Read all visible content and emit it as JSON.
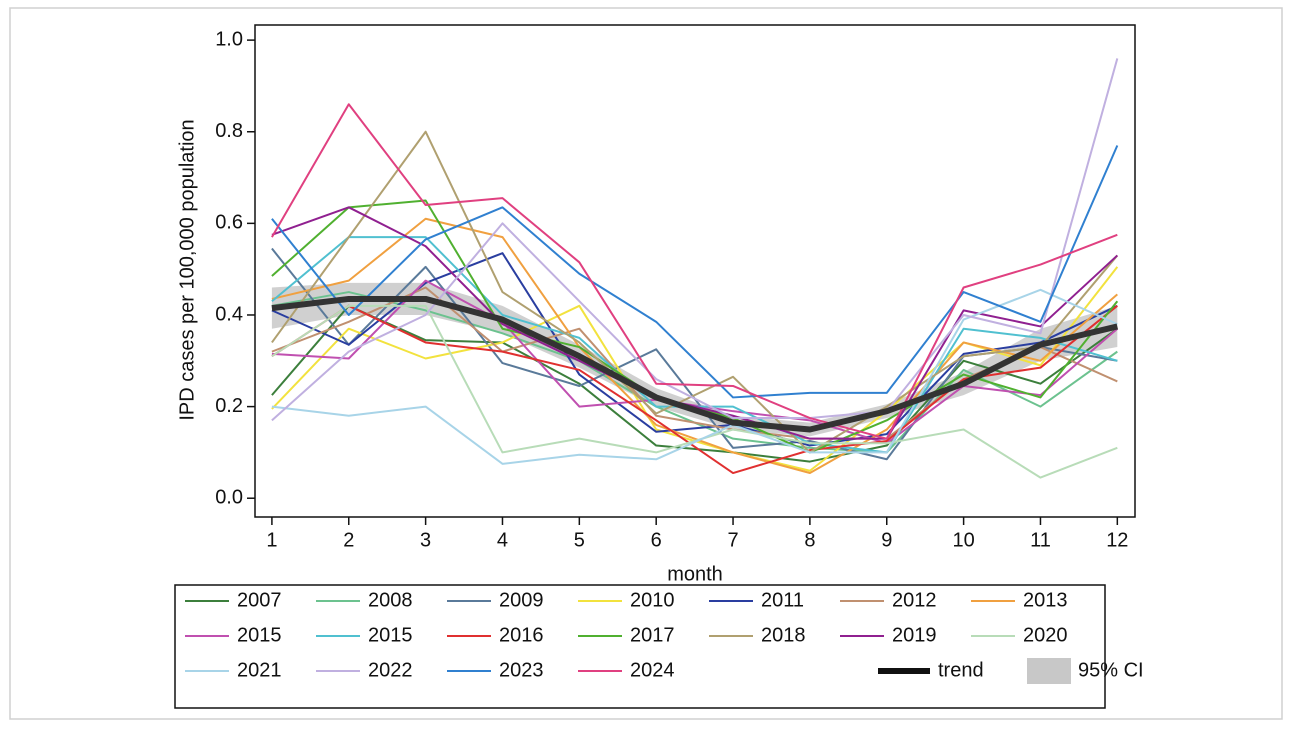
{
  "chart_data": {
    "type": "line",
    "ylabel": "IPD cases per 100,000 population",
    "xlabel": "month",
    "x": [
      1,
      2,
      3,
      4,
      5,
      6,
      7,
      8,
      9,
      10,
      11,
      12
    ],
    "xlim": [
      0.78,
      12.23
    ],
    "xticks": [
      1,
      2,
      3,
      4,
      5,
      6,
      7,
      8,
      9,
      10,
      11,
      12
    ],
    "ylim": [
      -0.041,
      1.033
    ],
    "yticks": [
      {
        "value": 0,
        "label": "0.0"
      },
      0.2,
      0.4,
      0.6,
      0.8,
      {
        "value": 1,
        "label": "1.0"
      }
    ],
    "series": [
      {
        "name": "2007",
        "color": "#3c7f3c",
        "values": [
          0.225,
          0.42,
          0.345,
          0.34,
          0.25,
          0.115,
          0.1,
          0.08,
          0.115,
          0.3,
          0.25,
          0.37
        ]
      },
      {
        "name": "2008",
        "color": "#6cc28f",
        "values": [
          0.42,
          0.45,
          0.41,
          0.36,
          0.3,
          0.2,
          0.13,
          0.11,
          0.1,
          0.28,
          0.2,
          0.32
        ]
      },
      {
        "name": "2009",
        "color": "#5a7a9a",
        "values": [
          0.545,
          0.335,
          0.505,
          0.295,
          0.245,
          0.325,
          0.11,
          0.125,
          0.085,
          0.31,
          0.33,
          0.3
        ]
      },
      {
        "name": "2010",
        "color": "#f2e23e",
        "values": [
          0.195,
          0.37,
          0.305,
          0.34,
          0.42,
          0.15,
          0.1,
          0.06,
          0.19,
          0.34,
          0.29,
          0.505
        ]
      },
      {
        "name": "2011",
        "color": "#2a3ea0",
        "values": [
          0.41,
          0.335,
          0.47,
          0.535,
          0.27,
          0.145,
          0.16,
          0.115,
          0.14,
          0.315,
          0.34,
          0.42
        ]
      },
      {
        "name": "2012",
        "color": "#c09070",
        "values": [
          0.32,
          0.385,
          0.46,
          0.32,
          0.37,
          0.18,
          0.15,
          0.13,
          0.13,
          0.26,
          0.33,
          0.255
        ]
      },
      {
        "name": "2013",
        "color": "#f0a040",
        "values": [
          0.435,
          0.475,
          0.61,
          0.57,
          0.33,
          0.16,
          0.1,
          0.055,
          0.15,
          0.34,
          0.3,
          0.445
        ]
      },
      {
        "name": "2015",
        "color": "#c050b0",
        "values": [
          0.315,
          0.305,
          0.475,
          0.385,
          0.2,
          0.215,
          0.19,
          0.17,
          0.12,
          0.245,
          0.225,
          0.37
        ]
      },
      {
        "name": "2015",
        "color": "#50c0d0",
        "values": [
          0.43,
          0.57,
          0.57,
          0.4,
          0.35,
          0.2,
          0.2,
          0.12,
          0.1,
          0.37,
          0.35,
          0.3
        ]
      },
      {
        "name": "2016",
        "color": "#e03030",
        "values": [
          0.31,
          0.42,
          0.34,
          0.32,
          0.28,
          0.17,
          0.055,
          0.105,
          0.125,
          0.26,
          0.285,
          0.42
        ]
      },
      {
        "name": "2017",
        "color": "#50b030",
        "values": [
          0.485,
          0.635,
          0.65,
          0.37,
          0.33,
          0.22,
          0.175,
          0.1,
          0.17,
          0.27,
          0.22,
          0.43
        ]
      },
      {
        "name": "2018",
        "color": "#b0a070",
        "values": [
          0.34,
          0.57,
          0.8,
          0.45,
          0.34,
          0.185,
          0.265,
          0.1,
          0.2,
          0.31,
          0.33,
          0.53
        ]
      },
      {
        "name": "2019",
        "color": "#902090",
        "values": [
          0.575,
          0.635,
          0.55,
          0.38,
          0.3,
          0.22,
          0.18,
          0.13,
          0.13,
          0.41,
          0.375,
          0.53
        ]
      },
      {
        "name": "2020",
        "color": "#b8dcb8",
        "values": [
          0.31,
          0.42,
          0.42,
          0.1,
          0.13,
          0.1,
          0.15,
          0.12,
          0.12,
          0.15,
          0.045,
          0.11
        ]
      },
      {
        "name": "2021",
        "color": "#a8d4e8",
        "values": [
          0.2,
          0.18,
          0.2,
          0.075,
          0.095,
          0.085,
          0.16,
          0.1,
          0.1,
          0.39,
          0.455,
          0.38
        ]
      },
      {
        "name": "2022",
        "color": "#c0b0e0",
        "values": [
          0.17,
          0.32,
          0.4,
          0.6,
          0.43,
          0.26,
          0.175,
          0.175,
          0.19,
          0.4,
          0.36,
          0.96
        ]
      },
      {
        "name": "2023",
        "color": "#3080d0",
        "values": [
          0.61,
          0.4,
          0.565,
          0.635,
          0.49,
          0.385,
          0.22,
          0.23,
          0.23,
          0.45,
          0.385,
          0.77
        ]
      },
      {
        "name": "2024",
        "color": "#e04080",
        "values": [
          0.57,
          0.86,
          0.64,
          0.655,
          0.515,
          0.25,
          0.245,
          0.175,
          0.13,
          0.46,
          0.51,
          0.575
        ]
      }
    ],
    "trend": {
      "name": "trend",
      "color": "#333333",
      "values": [
        0.415,
        0.435,
        0.435,
        0.39,
        0.31,
        0.22,
        0.165,
        0.15,
        0.19,
        0.25,
        0.335,
        0.375
      ]
    },
    "ci": {
      "name": "95% CI",
      "color": "#c8c8c8",
      "upper": [
        0.46,
        0.47,
        0.47,
        0.42,
        0.335,
        0.24,
        0.18,
        0.165,
        0.205,
        0.275,
        0.37,
        0.42
      ],
      "lower": [
        0.37,
        0.4,
        0.4,
        0.36,
        0.285,
        0.2,
        0.15,
        0.135,
        0.175,
        0.225,
        0.3,
        0.33
      ]
    }
  }
}
